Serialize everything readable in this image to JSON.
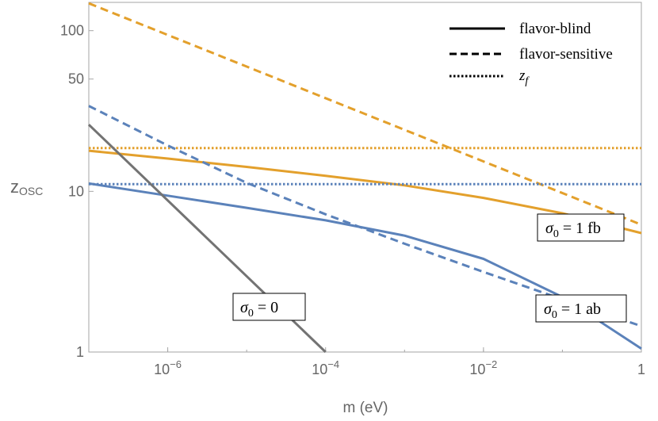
{
  "chart_data": {
    "type": "line",
    "x_scale": "log",
    "y_scale": "log",
    "xlabel": "m (eV)",
    "ylabel": "z_osc",
    "xlim": [
      1e-07,
      1
    ],
    "ylim": [
      1,
      150
    ],
    "x_ticks": [
      {
        "value": 1e-06,
        "base": "10",
        "exp": "−6"
      },
      {
        "value": 0.0001,
        "base": "10",
        "exp": "−4"
      },
      {
        "value": 0.01,
        "base": "10",
        "exp": "−2"
      },
      {
        "value": 1,
        "base": "1",
        "exp": ""
      }
    ],
    "y_ticks": [
      {
        "value": 1,
        "label": "1"
      },
      {
        "value": 10,
        "label": "10"
      },
      {
        "value": 50,
        "label": "50"
      },
      {
        "value": 100,
        "label": "100"
      }
    ],
    "colors": {
      "orange": "#e3a02c",
      "blue": "#5b82ba",
      "gray": "#737373"
    },
    "series": [
      {
        "name": "sigma0-1fb-flavor-blind",
        "style": "solid",
        "color": "#e3a02c",
        "x": [
          1e-07,
          1e-06,
          1e-05,
          0.0001,
          0.001,
          0.01,
          0.1,
          1
        ],
        "y": [
          17.9,
          16.0,
          14.2,
          12.5,
          10.9,
          9.1,
          7.3,
          5.5
        ]
      },
      {
        "name": "sigma0-1fb-flavor-sensitive",
        "style": "dashed",
        "color": "#e3a02c",
        "x": [
          1e-07,
          1
        ],
        "y": [
          148,
          6.2
        ]
      },
      {
        "name": "sigma0-1fb-zf",
        "style": "dotted",
        "color": "#e3a02c",
        "x": [
          1e-07,
          1
        ],
        "y": [
          18.6,
          18.6
        ]
      },
      {
        "name": "sigma0-1ab-flavor-blind",
        "style": "solid",
        "color": "#5b82ba",
        "x": [
          1e-07,
          1e-06,
          1e-05,
          0.0001,
          0.001,
          0.01,
          0.1,
          1
        ],
        "y": [
          11.2,
          9.4,
          7.9,
          6.6,
          5.3,
          3.8,
          2.2,
          1.05
        ]
      },
      {
        "name": "sigma0-1ab-flavor-sensitive",
        "style": "dashed",
        "color": "#5b82ba",
        "x": [
          1e-07,
          1e-06,
          1e-05,
          0.0001,
          0.001,
          0.01,
          0.1,
          1
        ],
        "y": [
          34,
          19.3,
          11.3,
          7.2,
          4.72,
          3.15,
          2.13,
          1.45
        ]
      },
      {
        "name": "sigma0-1ab-zf",
        "style": "dotted",
        "color": "#5b82ba",
        "x": [
          1e-07,
          1
        ],
        "y": [
          11.1,
          11.1
        ]
      },
      {
        "name": "sigma0-0",
        "style": "solid",
        "color": "#737373",
        "x": [
          1e-07,
          0.0001
        ],
        "y": [
          26,
          1
        ]
      }
    ],
    "legend": {
      "position": "top-right",
      "entries": [
        {
          "label": "flavor-blind",
          "style": "solid"
        },
        {
          "label": "flavor-sensitive",
          "style": "dashed"
        },
        {
          "label": "z",
          "sub": "f",
          "style": "dotted"
        }
      ]
    },
    "annotations": [
      {
        "name": "sigma0-1fb",
        "text": "σ",
        "sub": "0",
        "value": " = 1 fb"
      },
      {
        "name": "sigma0-1ab",
        "text": "σ",
        "sub": "0",
        "value": " = 1 ab"
      },
      {
        "name": "sigma0-0",
        "text": "σ",
        "sub": "0",
        "value": " = 0"
      }
    ],
    "axis_label_text": {
      "y_main": "z",
      "y_sub": "OSC"
    }
  }
}
